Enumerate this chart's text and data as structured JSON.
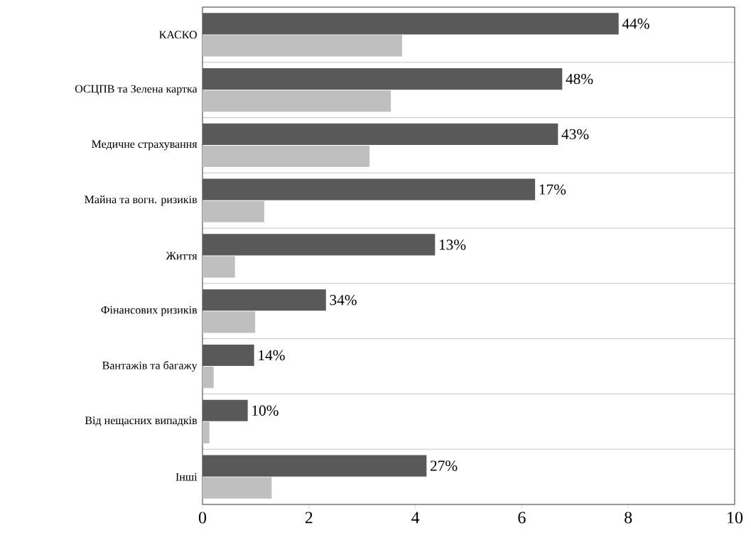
{
  "chart_data": {
    "type": "bar",
    "orientation": "horizontal",
    "categories": [
      "КАСКО",
      "ОСЦПВ та Зелена картка",
      "Медичне страхування",
      "Майна та вогн. ризиків",
      "Життя",
      "Фінансових ризиків",
      "Вантажів та багажу",
      "Від нещасних випадків",
      "Інші"
    ],
    "series": [
      {
        "color": "#595959",
        "values": [
          7.82,
          6.76,
          6.68,
          6.25,
          4.37,
          2.32,
          0.97,
          0.85,
          4.21
        ]
      },
      {
        "color": "#bfbfbf",
        "values": [
          3.75,
          3.54,
          3.14,
          1.16,
          0.61,
          0.99,
          0.21,
          0.13,
          1.3
        ]
      }
    ],
    "annotations": [
      {
        "text": "44%",
        "x": 7.82,
        "y": "КАСКО"
      },
      {
        "text": "48%",
        "x": 6.76,
        "y": "ОСЦПВ та Зелена картка"
      },
      {
        "text": "43%",
        "x": 6.68,
        "y": "Медичне страхування"
      },
      {
        "text": "17%",
        "x": 6.25,
        "y": "Майна та вогн. ризиків"
      },
      {
        "text": "13%",
        "x": 4.37,
        "y": "Життя"
      },
      {
        "text": "34%",
        "x": 2.32,
        "y": "Фінансових ризиків"
      },
      {
        "text": "14%",
        "x": 0.97,
        "y": "Вантажів та багажу"
      },
      {
        "text": "10%",
        "x": 0.85,
        "y": "Від нещасних випадків"
      },
      {
        "text": "27%",
        "x": 4.21,
        "y": "Інші"
      }
    ],
    "xlim": [
      0,
      10
    ],
    "xticks": [
      0,
      2,
      4,
      6,
      8,
      10
    ],
    "grid": "y"
  }
}
